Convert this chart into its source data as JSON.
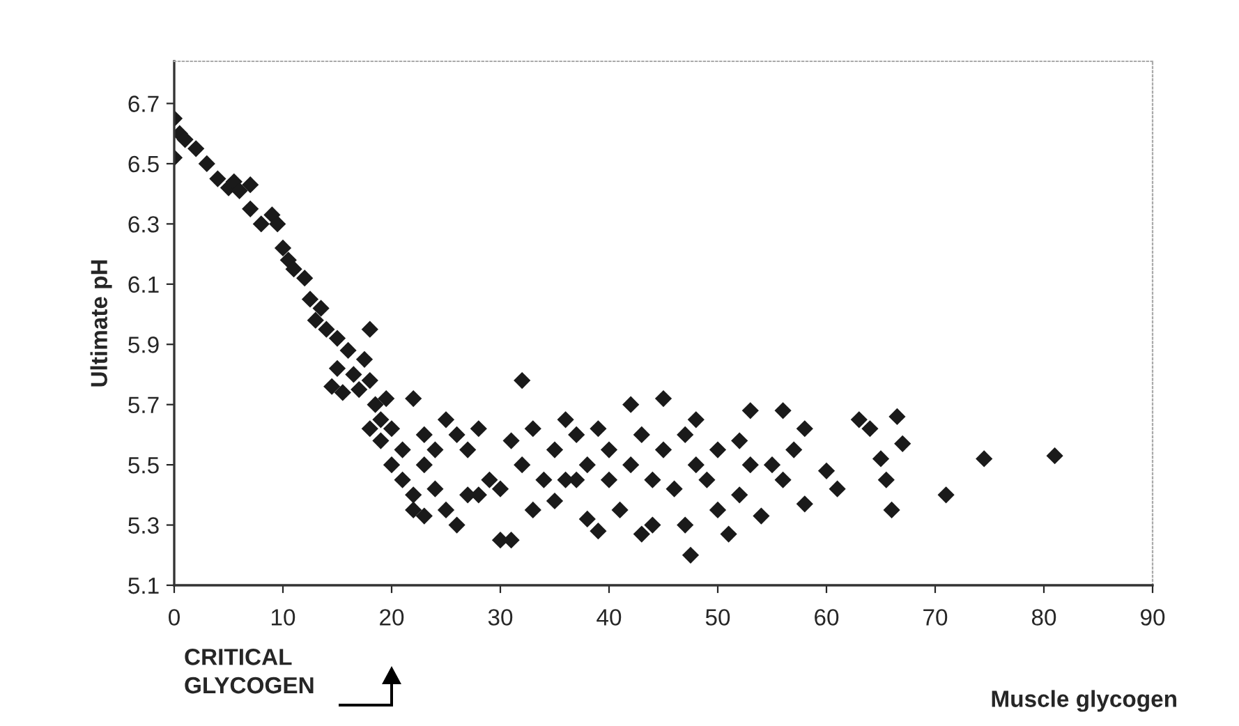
{
  "chart_data": {
    "type": "scatter",
    "xlabel": "Muscle glycogen",
    "ylabel": "Ultimate pH",
    "annotations": [
      "CRITICAL\nGLYCOGEN"
    ],
    "xlim": [
      0,
      90
    ],
    "xticks": [
      0,
      10,
      20,
      30,
      40,
      50,
      60,
      70,
      80,
      90
    ],
    "ylim": [
      5.1,
      6.84
    ],
    "yticks": [
      5.1,
      5.3,
      5.5,
      5.7,
      5.9,
      6.1,
      6.3,
      6.5,
      6.7
    ],
    "grid": false,
    "marker": "diamond",
    "legend": false,
    "series": [
      {
        "color": "#1a1a1a",
        "x": [
          0,
          0.5,
          0,
          1,
          2,
          3,
          4,
          5,
          5.5,
          6,
          7,
          7,
          8,
          9,
          9.5,
          10,
          10.5,
          11,
          12,
          12.5,
          13,
          13.5,
          14,
          15,
          15,
          16,
          16.5,
          17,
          17.5,
          18,
          18,
          18.5,
          14.5,
          15.5,
          19,
          19,
          20,
          20,
          21,
          21,
          22,
          22,
          23,
          23,
          24,
          25,
          26,
          27,
          28,
          29,
          30,
          31,
          30,
          31,
          32,
          32,
          33,
          33,
          34,
          35,
          35,
          36,
          37,
          38,
          38,
          39,
          39,
          40,
          40,
          41,
          42,
          42,
          43,
          43,
          44,
          45,
          45,
          46,
          47,
          47,
          47.5,
          48,
          48,
          49,
          50,
          50,
          51,
          52,
          52,
          53,
          53,
          54,
          55,
          56,
          56,
          57,
          58,
          58,
          60,
          61,
          63,
          64,
          65,
          65.5,
          66,
          66.5,
          67,
          71,
          74.5,
          81,
          24,
          25,
          26,
          28,
          36,
          37,
          44,
          27,
          22,
          19.5,
          23,
          18
        ],
        "values": [
          6.65,
          6.6,
          6.52,
          6.58,
          6.55,
          6.5,
          6.45,
          6.42,
          6.44,
          6.41,
          6.43,
          6.35,
          6.3,
          6.33,
          6.3,
          6.22,
          6.18,
          6.15,
          6.12,
          6.05,
          5.98,
          6.02,
          5.95,
          5.92,
          5.82,
          5.88,
          5.8,
          5.75,
          5.85,
          5.95,
          5.78,
          5.7,
          5.76,
          5.74,
          5.65,
          5.58,
          5.62,
          5.5,
          5.55,
          5.45,
          5.4,
          5.35,
          5.5,
          5.6,
          5.42,
          5.35,
          5.3,
          5.55,
          5.62,
          5.45,
          5.25,
          5.25,
          5.42,
          5.58,
          5.78,
          5.5,
          5.35,
          5.62,
          5.45,
          5.55,
          5.38,
          5.65,
          5.45,
          5.5,
          5.32,
          5.62,
          5.28,
          5.45,
          5.55,
          5.35,
          5.7,
          5.5,
          5.6,
          5.27,
          5.45,
          5.72,
          5.55,
          5.42,
          5.6,
          5.3,
          5.2,
          5.5,
          5.65,
          5.45,
          5.55,
          5.35,
          5.27,
          5.58,
          5.4,
          5.5,
          5.68,
          5.33,
          5.5,
          5.68,
          5.45,
          5.55,
          5.37,
          5.62,
          5.48,
          5.42,
          5.65,
          5.62,
          5.52,
          5.45,
          5.35,
          5.66,
          5.57,
          5.4,
          5.52,
          5.53,
          5.55,
          5.65,
          5.6,
          5.4,
          5.45,
          5.6,
          5.3,
          5.4,
          5.72,
          5.72,
          5.33,
          5.62
        ]
      }
    ]
  }
}
